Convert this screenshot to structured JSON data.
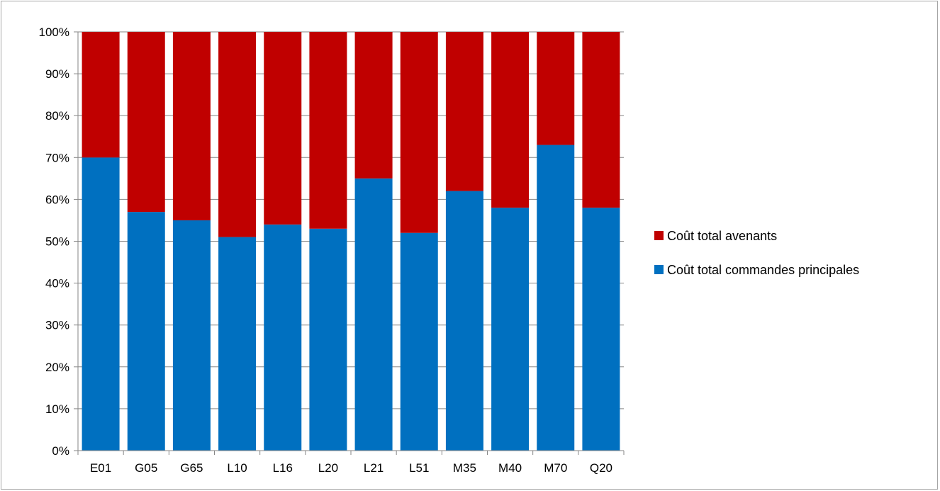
{
  "chart_data": {
    "type": "bar",
    "stacked": "percent",
    "title": "",
    "xlabel": "",
    "ylabel": "",
    "ylim": [
      0,
      100
    ],
    "y_ticks": [
      "0%",
      "10%",
      "20%",
      "30%",
      "40%",
      "50%",
      "60%",
      "70%",
      "80%",
      "90%",
      "100%"
    ],
    "grid": true,
    "legend_position": "right",
    "categories": [
      "E01",
      "G05",
      "G65",
      "L10",
      "L16",
      "L20",
      "L21",
      "L51",
      "M35",
      "M40",
      "M70",
      "Q20"
    ],
    "series": [
      {
        "name": "Coût total commandes principales",
        "color": "#0070c0",
        "values": [
          70,
          57,
          55,
          51,
          54,
          53,
          65,
          52,
          62,
          58,
          73,
          58
        ]
      },
      {
        "name": "Coût total avenants",
        "color": "#c00000",
        "values": [
          30,
          43,
          45,
          49,
          46,
          47,
          35,
          48,
          38,
          42,
          27,
          42
        ]
      }
    ],
    "legend_order": [
      "Coût total avenants",
      "Coût total commandes principales"
    ]
  }
}
